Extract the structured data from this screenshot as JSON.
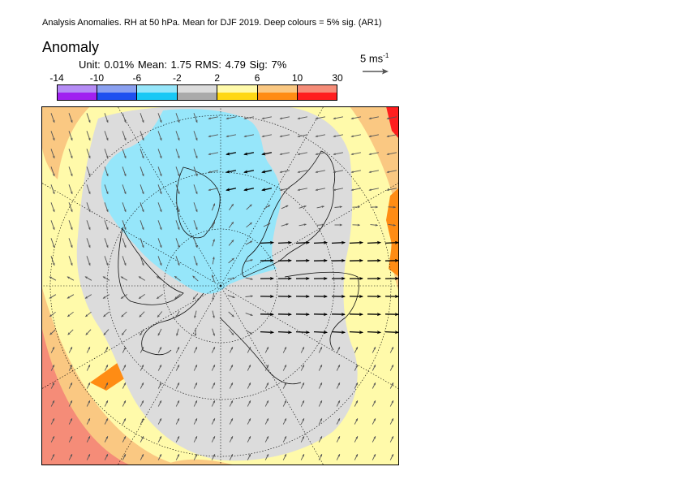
{
  "header": {
    "title": "Analysis Anomalies. RH at 50 hPa. Mean for DJF 2019.  Deep colours = 5% sig. (AR1)",
    "field_name": "Anomaly",
    "stats": "Unit: 0.01%  Mean: 1.75  RMS: 4.79  Sig: 7%"
  },
  "colorbar": {
    "ticks": [
      "-14",
      "-10",
      "-6",
      "-2",
      "2",
      "6",
      "10",
      "30"
    ],
    "pale_colors": [
      "#b58cf5",
      "#8aa0f0",
      "#96e6fa",
      "#dcdcdc",
      "#fffaaa",
      "#fac882",
      "#f58c78"
    ],
    "deep_colors": [
      "#a020f0",
      "#1e50f0",
      "#19c8f5",
      "#aaaaaa",
      "#ffd714",
      "#ff8c14",
      "#ff1e1e"
    ]
  },
  "reference_vector": {
    "label": "5 ms",
    "unit_exp": "-1"
  },
  "map": {
    "projection": "polar-stereographic-north",
    "colors": {
      "background": "#fffaaa",
      "near_zero": "#dcdcdc",
      "negative": "#96e6fa",
      "positive_mid": "#fac882",
      "positive_high": "#f58c78",
      "positive_deep": "#ff8c14",
      "positive_max": "#ff1e1e",
      "arrow_grey": "#555555",
      "arrow_sig": "#000000"
    },
    "icons": [
      "wind-vector-arrow",
      "coastline"
    ]
  }
}
